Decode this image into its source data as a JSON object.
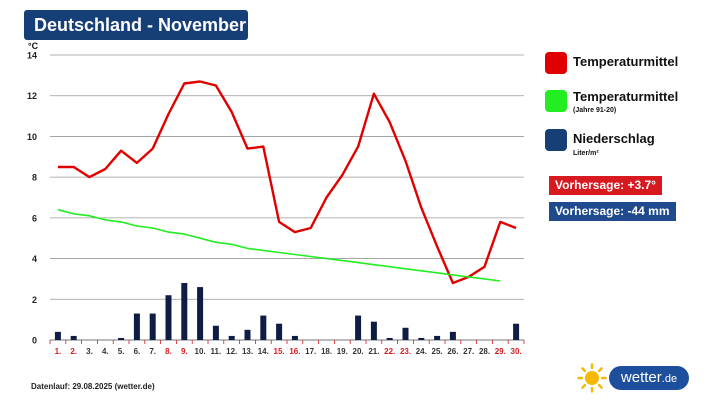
{
  "header": {
    "title": "Deutschland - November"
  },
  "legend": {
    "items": [
      {
        "label": "Temperaturmittel",
        "sub": "",
        "color": "#e00000"
      },
      {
        "label": "Temperaturmittel",
        "sub": "(Jahre 91-20)",
        "color": "#22ee22"
      },
      {
        "label": "Niederschlag",
        "sub": "Liter/m²",
        "color": "#163f78"
      }
    ]
  },
  "badges": {
    "temp": {
      "text": "Vorhersage: +3.7°",
      "color": "#d71920"
    },
    "precip": {
      "text": "Vorhersage: -44 mm",
      "color": "#1f4b8e"
    }
  },
  "footer": {
    "text": "Datenlauf: 29.08.2025 (wetter.de)"
  },
  "logo": {
    "text": "wetter",
    "suffix": ".de",
    "icon": "sun-icon"
  },
  "chart_data": {
    "type": "line+bar",
    "unit_label": "°C",
    "ylim": [
      0,
      14
    ],
    "yticks": [
      0,
      2,
      4,
      6,
      8,
      10,
      12,
      14
    ],
    "grid": true,
    "categories": [
      "1.",
      "2.",
      "3.",
      "4.",
      "5.",
      "6.",
      "7.",
      "8.",
      "9.",
      "10.",
      "11.",
      "12.",
      "13.",
      "14.",
      "15.",
      "16.",
      "17.",
      "18.",
      "19.",
      "20.",
      "21.",
      "22.",
      "23.",
      "24.",
      "25.",
      "26.",
      "27.",
      "28.",
      "29.",
      "30."
    ],
    "weekend_days": [
      1,
      2,
      8,
      9,
      15,
      16,
      22,
      23,
      29,
      30
    ],
    "weekend_color": "#d71920",
    "series": [
      {
        "name": "Temperaturmittel",
        "type": "line",
        "color": "#e00000",
        "x": [
          1,
          2,
          3,
          4,
          5,
          6,
          7,
          8,
          9,
          10,
          11,
          12,
          13,
          14,
          15,
          16,
          17,
          18,
          19,
          20,
          21,
          22,
          23,
          24,
          25,
          26,
          27,
          28,
          29,
          30
        ],
        "values": [
          8.5,
          8.5,
          8.0,
          8.4,
          9.3,
          8.7,
          9.4,
          11.1,
          12.6,
          12.7,
          12.5,
          11.2,
          9.4,
          9.5,
          5.8,
          5.3,
          5.5,
          7.0,
          8.1,
          9.5,
          12.1,
          10.7,
          8.8,
          6.5,
          4.6,
          2.8,
          3.1,
          3.6,
          5.8,
          5.5
        ]
      },
      {
        "name": "Temperaturmittel (Jahre 91-20)",
        "type": "line",
        "color": "#22ee22",
        "x": [
          1,
          2,
          3,
          4,
          5,
          6,
          7,
          8,
          9,
          10,
          11,
          12,
          13,
          14,
          15,
          16,
          17,
          18,
          19,
          20,
          21,
          22,
          23,
          24,
          25,
          26,
          27,
          28,
          29
        ],
        "values": [
          6.4,
          6.2,
          6.1,
          5.9,
          5.8,
          5.6,
          5.5,
          5.3,
          5.2,
          5.0,
          4.8,
          4.7,
          4.5,
          4.4,
          4.3,
          4.2,
          4.1,
          4.0,
          3.9,
          3.8,
          3.7,
          3.6,
          3.5,
          3.4,
          3.3,
          3.2,
          3.1,
          3.0,
          2.9
        ]
      },
      {
        "name": "Niederschlag",
        "type": "bar",
        "color": "#0f1d44",
        "values": [
          0.4,
          0.2,
          0,
          0,
          0.1,
          1.3,
          1.3,
          2.2,
          2.8,
          2.6,
          0.7,
          0.2,
          0.5,
          1.2,
          0.8,
          0.2,
          0,
          0,
          0,
          1.2,
          0.9,
          0.1,
          0.6,
          0.1,
          0.2,
          0.4,
          0,
          0,
          0,
          0.8
        ]
      }
    ]
  }
}
